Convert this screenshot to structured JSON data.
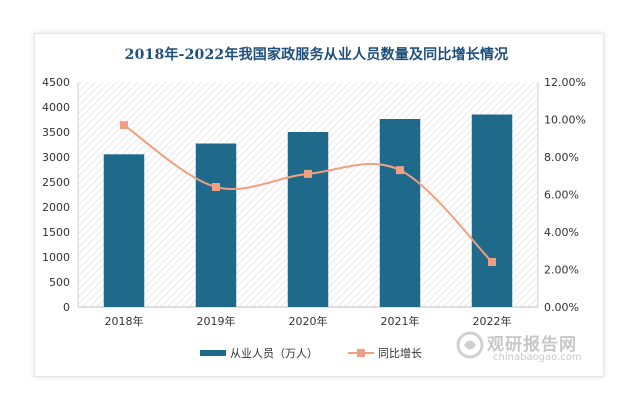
{
  "chart_data": {
    "type": "bar+line",
    "title": "2018年-2022年我国家政服务从业人员数量及同比增长情况",
    "categories": [
      "2018年",
      "2019年",
      "2020年",
      "2021年",
      "2022年"
    ],
    "series": [
      {
        "name": "从业人员（万人）",
        "type": "bar",
        "axis": "left",
        "values": [
          3054,
          3270,
          3500,
          3760,
          3850
        ]
      },
      {
        "name": "同比增长",
        "type": "line",
        "axis": "right",
        "values": [
          9.7,
          6.4,
          7.1,
          7.3,
          2.4
        ]
      }
    ],
    "y_left": {
      "min": 0,
      "max": 4500,
      "step": 500,
      "ticks": [
        "0",
        "500",
        "1000",
        "1500",
        "2000",
        "2500",
        "3000",
        "3500",
        "4000",
        "4500"
      ]
    },
    "y_right": {
      "min": 0,
      "max": 12,
      "step": 2,
      "ticks": [
        "0.00%",
        "2.00%",
        "4.00%",
        "6.00%",
        "8.00%",
        "10.00%",
        "12.00%"
      ]
    },
    "legend_position": "bottom",
    "grid": false,
    "colors": {
      "bar": "#1f6a8a",
      "line": "#f0a080",
      "title": "#1d4f7a"
    }
  },
  "watermark": {
    "text_cn": "观研报告网",
    "text_en": "chinabaogao.com"
  }
}
